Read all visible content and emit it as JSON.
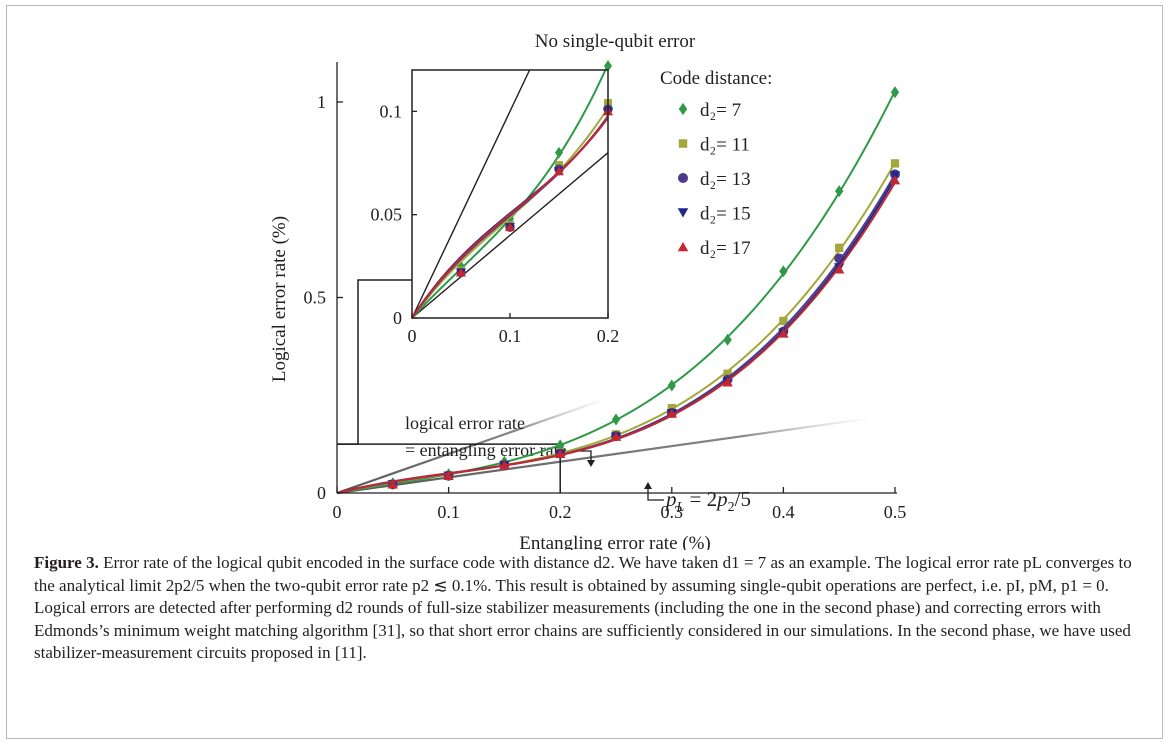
{
  "chart_data": {
    "type": "line",
    "title": "No single-qubit error",
    "xlabel": "Entangling error rate (%)",
    "ylabel": "Logical error rate (%)",
    "xlim": [
      0,
      0.5
    ],
    "ylim": [
      0,
      1.05
    ],
    "xticks": [
      "0",
      "0.1",
      "0.2",
      "0.3",
      "0.4",
      "0.5"
    ],
    "yticks": [
      "0",
      "0.5",
      "1"
    ],
    "legend_title": "Code distance:",
    "legend_position": "top-right",
    "legend_labels": [
      "d₂= 7",
      "d₂= 11",
      "d₂= 13",
      "d₂= 15",
      "d₂= 17"
    ],
    "x": [
      0.05,
      0.1,
      0.15,
      0.2,
      0.25,
      0.3,
      0.35,
      0.4,
      0.45,
      0.5
    ],
    "series": [
      {
        "name": "d2= 7",
        "marker": "diamond",
        "color": "#2e9a48",
        "values": [
          0.025,
          0.048,
          0.08,
          0.122,
          0.188,
          0.275,
          0.392,
          0.567,
          0.772,
          1.025
        ]
      },
      {
        "name": "d2= 11",
        "marker": "square",
        "color": "#a3a83a",
        "values": [
          0.023,
          0.045,
          0.074,
          0.104,
          0.15,
          0.217,
          0.305,
          0.44,
          0.627,
          0.843
        ]
      },
      {
        "name": "d2= 13",
        "marker": "circle",
        "color": "#4d3a8c",
        "values": [
          0.022,
          0.044,
          0.072,
          0.101,
          0.146,
          0.205,
          0.29,
          0.413,
          0.6,
          0.815
        ]
      },
      {
        "name": "d2= 15",
        "marker": "triangle-down",
        "color": "#1e2a86",
        "values": [
          0.022,
          0.044,
          0.071,
          0.1,
          0.144,
          0.204,
          0.285,
          0.41,
          0.577,
          0.812
        ]
      },
      {
        "name": "d2= 17",
        "marker": "triangle-up",
        "color": "#c4272f",
        "values": [
          0.022,
          0.044,
          0.071,
          0.1,
          0.144,
          0.203,
          0.283,
          0.408,
          0.572,
          0.8
        ]
      }
    ],
    "reference_lines": [
      {
        "label": "logical error rate = entangling error rate",
        "slope": 1.0
      },
      {
        "label": "p_L = 2p_2/5",
        "slope": 0.4
      }
    ],
    "annotations": {
      "logical_equals_entangling": [
        "logical error rate",
        "= entangling error rate"
      ],
      "formula": {
        "p": "p",
        "L": "L",
        "eq": " = 2",
        "p2": "p",
        "two": "2",
        "over5": "/5"
      }
    },
    "inset": {
      "xlim": [
        0,
        0.2
      ],
      "ylim": [
        0,
        0.12
      ],
      "xticks": [
        "0",
        "0.1",
        "0.2"
      ],
      "yticks": [
        "0",
        "0.05",
        "0.1"
      ],
      "zoom_region": {
        "x": [
          0,
          0.2
        ],
        "y": [
          0,
          0.125
        ]
      }
    }
  },
  "caption": {
    "label": "Figure 3.",
    "text": " Error rate of the logical qubit encoded in the surface code with distance d2. We have taken d1 = 7 as an example. The logical error rate pL converges to the analytical limit 2p2/5 when the two-qubit error rate p2 ≲ 0.1%. This result is obtained by assuming single-qubit operations are perfect, i.e. pI, pM, p1 = 0. Logical errors are detected after performing d2 rounds of full-size stabilizer measurements (including the one in the second phase) and correcting errors with Edmonds’s minimum weight matching algorithm [31], so that short error chains are sufficiently considered in our simulations. In the second phase, we have used stabilizer-measurement circuits proposed in [11]."
  }
}
